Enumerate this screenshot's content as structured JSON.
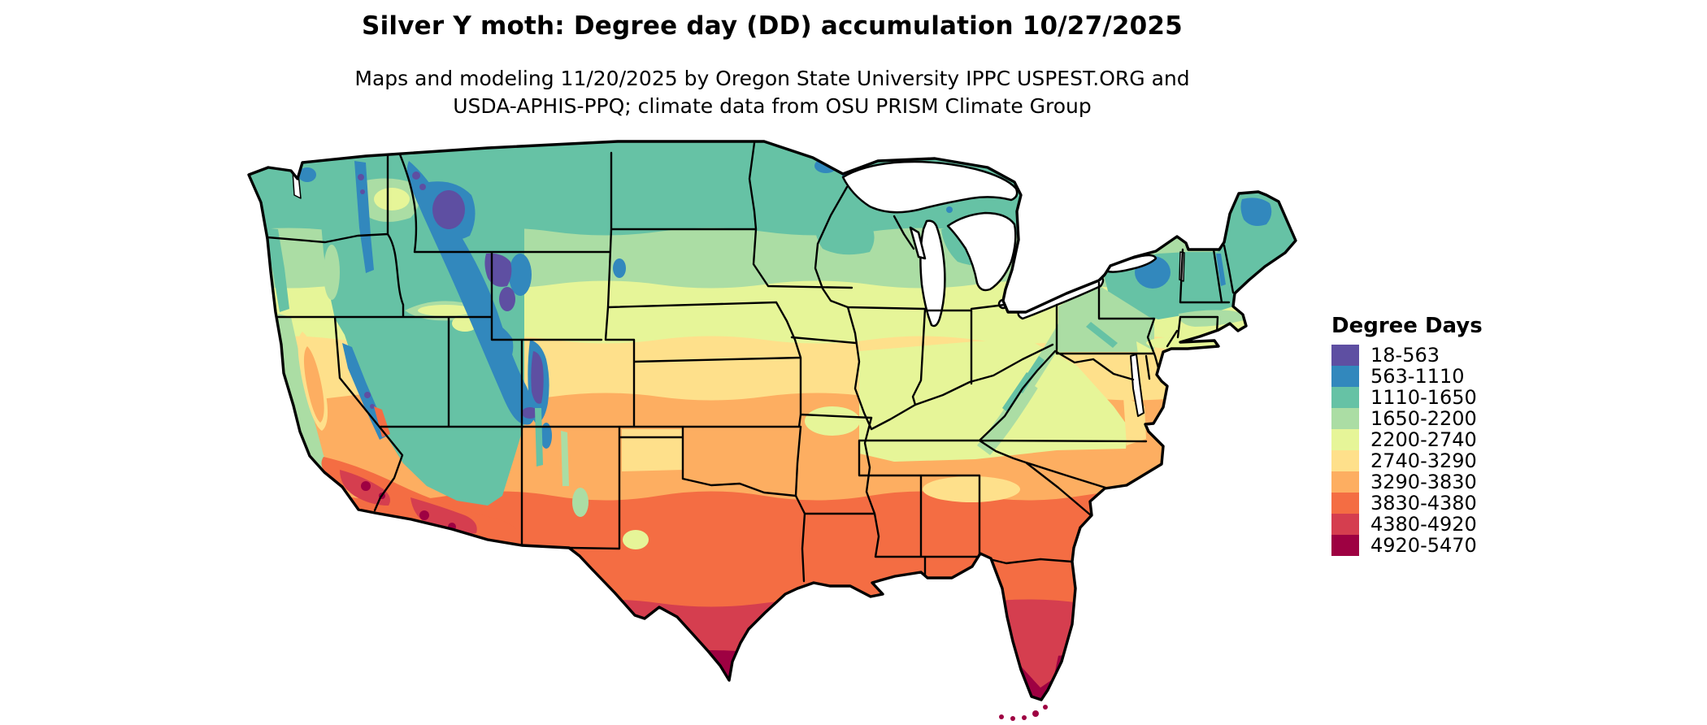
{
  "header": {
    "title": "Silver Y moth: Degree day (DD) accumulation 10/27/2025",
    "subtitle_line1": "Maps and modeling 11/20/2025 by Oregon State University IPPC USPEST.ORG and",
    "subtitle_line2": "USDA-APHIS-PPQ; climate data from OSU PRISM Climate Group"
  },
  "legend": {
    "title": "Degree Days",
    "items": [
      {
        "label": "18-563",
        "color": "#5e4fa2"
      },
      {
        "label": "563-1110",
        "color": "#3288bd"
      },
      {
        "label": "1110-1650",
        "color": "#66c2a5"
      },
      {
        "label": "1650-2200",
        "color": "#abdda4"
      },
      {
        "label": "2200-2740",
        "color": "#e6f598"
      },
      {
        "label": "2740-3290",
        "color": "#fee08b"
      },
      {
        "label": "3290-3830",
        "color": "#fdae61"
      },
      {
        "label": "3830-4380",
        "color": "#f46d43"
      },
      {
        "label": "4380-4920",
        "color": "#d53e4f"
      },
      {
        "label": "4920-5470",
        "color": "#9e0142"
      }
    ]
  },
  "map": {
    "type": "choropleth-raster",
    "region": "Contiguous United States",
    "border_color": "#000000",
    "water_color": "#ffffff",
    "quantity": "Degree day accumulation (DD)",
    "value_range": [
      18,
      5470
    ]
  }
}
